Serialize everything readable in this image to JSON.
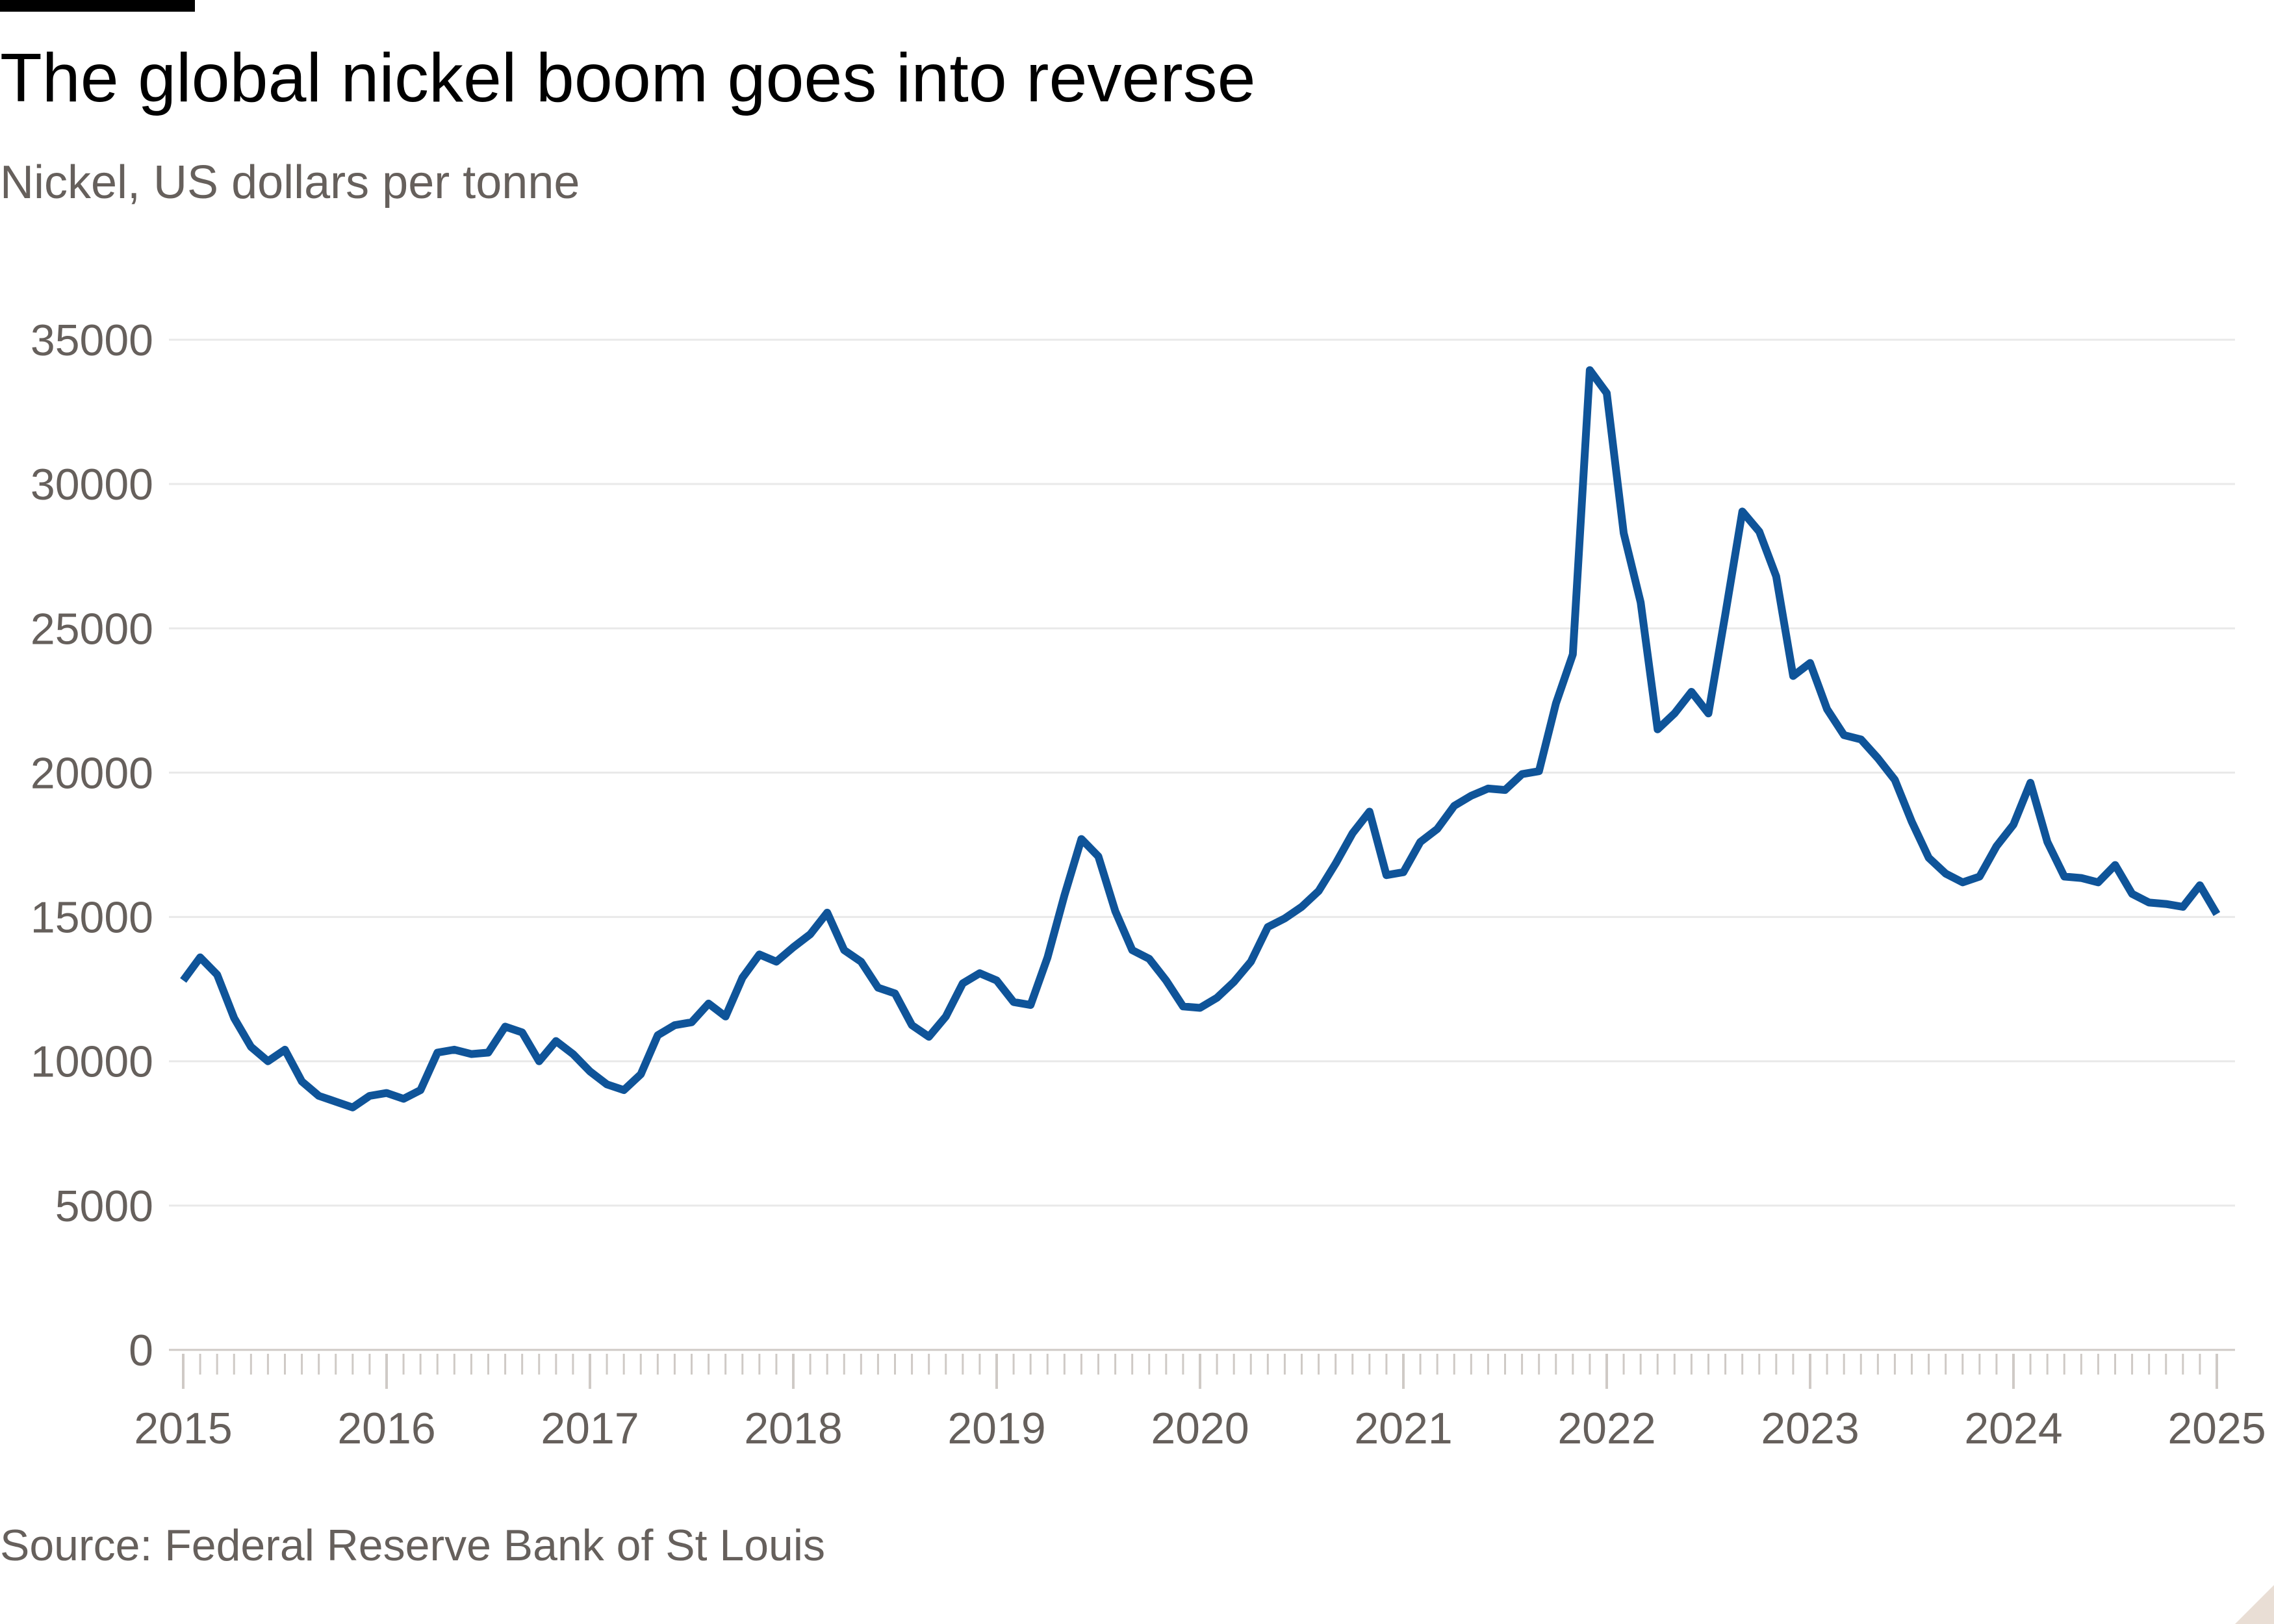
{
  "header": {
    "title": "The global nickel boom goes into reverse",
    "subtitle": "Nickel, US dollars per tonne"
  },
  "footer": {
    "source": "Source: Federal Reserve Bank of St Louis"
  },
  "colors": {
    "line": "#0f5499",
    "grid": "#e9e9e9",
    "axis_text": "#66605c"
  },
  "chart_data": {
    "type": "line",
    "title": "The global nickel boom goes into reverse",
    "ylabel": "Nickel, US dollars per tonne",
    "xlabel": "",
    "ylim": [
      0,
      35000
    ],
    "yticks": [
      0,
      5000,
      10000,
      15000,
      20000,
      25000,
      30000,
      35000
    ],
    "xticks": [
      "2015",
      "2016",
      "2017",
      "2018",
      "2019",
      "2020",
      "2021",
      "2022",
      "2023",
      "2024",
      "2025"
    ],
    "grid": true,
    "legend": "none",
    "series": [
      {
        "values": [
          {
            "x": "2015-01",
            "y": 12800
          },
          {
            "x": "2015-02",
            "y": 13600
          },
          {
            "x": "2015-03",
            "y": 13000
          },
          {
            "x": "2015-04",
            "y": 11500
          },
          {
            "x": "2015-05",
            "y": 10500
          },
          {
            "x": "2015-06",
            "y": 10000
          },
          {
            "x": "2015-07",
            "y": 10400
          },
          {
            "x": "2015-08",
            "y": 9300
          },
          {
            "x": "2015-09",
            "y": 8800
          },
          {
            "x": "2015-10",
            "y": 8600
          },
          {
            "x": "2015-11",
            "y": 8400
          },
          {
            "x": "2015-12",
            "y": 8800
          },
          {
            "x": "2016-01",
            "y": 8900
          },
          {
            "x": "2016-02",
            "y": 8700
          },
          {
            "x": "2016-03",
            "y": 9000
          },
          {
            "x": "2016-04",
            "y": 10300
          },
          {
            "x": "2016-05",
            "y": 10400
          },
          {
            "x": "2016-06",
            "y": 10250
          },
          {
            "x": "2016-07",
            "y": 10300
          },
          {
            "x": "2016-08",
            "y": 11200
          },
          {
            "x": "2016-09",
            "y": 11000
          },
          {
            "x": "2016-10",
            "y": 10000
          },
          {
            "x": "2016-11",
            "y": 10700
          },
          {
            "x": "2016-12",
            "y": 10250
          },
          {
            "x": "2017-01",
            "y": 9650
          },
          {
            "x": "2017-02",
            "y": 9200
          },
          {
            "x": "2017-03",
            "y": 9000
          },
          {
            "x": "2017-04",
            "y": 9550
          },
          {
            "x": "2017-05",
            "y": 10900
          },
          {
            "x": "2017-06",
            "y": 11250
          },
          {
            "x": "2017-07",
            "y": 11350
          },
          {
            "x": "2017-08",
            "y": 12000
          },
          {
            "x": "2017-09",
            "y": 11550
          },
          {
            "x": "2017-10",
            "y": 12900
          },
          {
            "x": "2017-11",
            "y": 13700
          },
          {
            "x": "2017-12",
            "y": 13450
          },
          {
            "x": "2018-01",
            "y": 13950
          },
          {
            "x": "2018-02",
            "y": 14400
          },
          {
            "x": "2018-03",
            "y": 15150
          },
          {
            "x": "2018-04",
            "y": 13850
          },
          {
            "x": "2018-05",
            "y": 13450
          },
          {
            "x": "2018-06",
            "y": 12550
          },
          {
            "x": "2018-07",
            "y": 12350
          },
          {
            "x": "2018-08",
            "y": 11250
          },
          {
            "x": "2018-09",
            "y": 10850
          },
          {
            "x": "2018-10",
            "y": 11550
          },
          {
            "x": "2018-11",
            "y": 12700
          },
          {
            "x": "2018-12",
            "y": 13050
          },
          {
            "x": "2019-01",
            "y": 12800
          },
          {
            "x": "2019-02",
            "y": 12050
          },
          {
            "x": "2019-03",
            "y": 11950
          },
          {
            "x": "2019-04",
            "y": 13600
          },
          {
            "x": "2019-05",
            "y": 15750
          },
          {
            "x": "2019-06",
            "y": 17700
          },
          {
            "x": "2019-07",
            "y": 17100
          },
          {
            "x": "2019-08",
            "y": 15200
          },
          {
            "x": "2019-09",
            "y": 13850
          },
          {
            "x": "2019-10",
            "y": 13550
          },
          {
            "x": "2019-11",
            "y": 12800
          },
          {
            "x": "2019-12",
            "y": 11900
          },
          {
            "x": "2020-01",
            "y": 11850
          },
          {
            "x": "2020-02",
            "y": 12200
          },
          {
            "x": "2020-03",
            "y": 12750
          },
          {
            "x": "2020-04",
            "y": 13450
          },
          {
            "x": "2020-05",
            "y": 14650
          },
          {
            "x": "2020-06",
            "y": 14950
          },
          {
            "x": "2020-07",
            "y": 15350
          },
          {
            "x": "2020-08",
            "y": 15900
          },
          {
            "x": "2020-09",
            "y": 16850
          },
          {
            "x": "2020-10",
            "y": 17900
          },
          {
            "x": "2020-11",
            "y": 18650
          },
          {
            "x": "2020-12",
            "y": 16450
          },
          {
            "x": "2021-01",
            "y": 16550
          },
          {
            "x": "2021-02",
            "y": 17600
          },
          {
            "x": "2021-03",
            "y": 18050
          },
          {
            "x": "2021-04",
            "y": 18850
          },
          {
            "x": "2021-05",
            "y": 19200
          },
          {
            "x": "2021-06",
            "y": 19450
          },
          {
            "x": "2021-07",
            "y": 19400
          },
          {
            "x": "2021-08",
            "y": 19950
          },
          {
            "x": "2021-09",
            "y": 20050
          },
          {
            "x": "2021-10",
            "y": 22400
          },
          {
            "x": "2021-11",
            "y": 24100
          },
          {
            "x": "2021-12",
            "y": 33950
          },
          {
            "x": "2022-01",
            "y": 33150
          },
          {
            "x": "2022-02",
            "y": 28300
          },
          {
            "x": "2022-03",
            "y": 25900
          },
          {
            "x": "2022-04",
            "y": 21500
          },
          {
            "x": "2022-05",
            "y": 22050
          },
          {
            "x": "2022-06",
            "y": 22800
          },
          {
            "x": "2022-07",
            "y": 22050
          },
          {
            "x": "2022-08",
            "y": 25500
          },
          {
            "x": "2022-09",
            "y": 29050
          },
          {
            "x": "2022-10",
            "y": 28350
          },
          {
            "x": "2022-11",
            "y": 26800
          },
          {
            "x": "2022-12",
            "y": 23350
          },
          {
            "x": "2023-01",
            "y": 23800
          },
          {
            "x": "2023-02",
            "y": 22200
          },
          {
            "x": "2023-03",
            "y": 21300
          },
          {
            "x": "2023-04",
            "y": 21150
          },
          {
            "x": "2023-05",
            "y": 20500
          },
          {
            "x": "2023-06",
            "y": 19750
          },
          {
            "x": "2023-07",
            "y": 18300
          },
          {
            "x": "2023-08",
            "y": 17050
          },
          {
            "x": "2023-09",
            "y": 16500
          },
          {
            "x": "2023-10",
            "y": 16200
          },
          {
            "x": "2023-11",
            "y": 16400
          },
          {
            "x": "2023-12",
            "y": 17450
          },
          {
            "x": "2024-01",
            "y": 18200
          },
          {
            "x": "2024-02",
            "y": 19650
          },
          {
            "x": "2024-03",
            "y": 17600
          },
          {
            "x": "2024-04",
            "y": 16400
          },
          {
            "x": "2024-05",
            "y": 16350
          },
          {
            "x": "2024-06",
            "y": 16200
          },
          {
            "x": "2024-07",
            "y": 16800
          },
          {
            "x": "2024-08",
            "y": 15800
          },
          {
            "x": "2024-09",
            "y": 15500
          },
          {
            "x": "2024-10",
            "y": 15450
          },
          {
            "x": "2024-11",
            "y": 15350
          },
          {
            "x": "2024-12",
            "y": 16100
          },
          {
            "x": "2025-01",
            "y": 15100
          }
        ]
      }
    ]
  }
}
